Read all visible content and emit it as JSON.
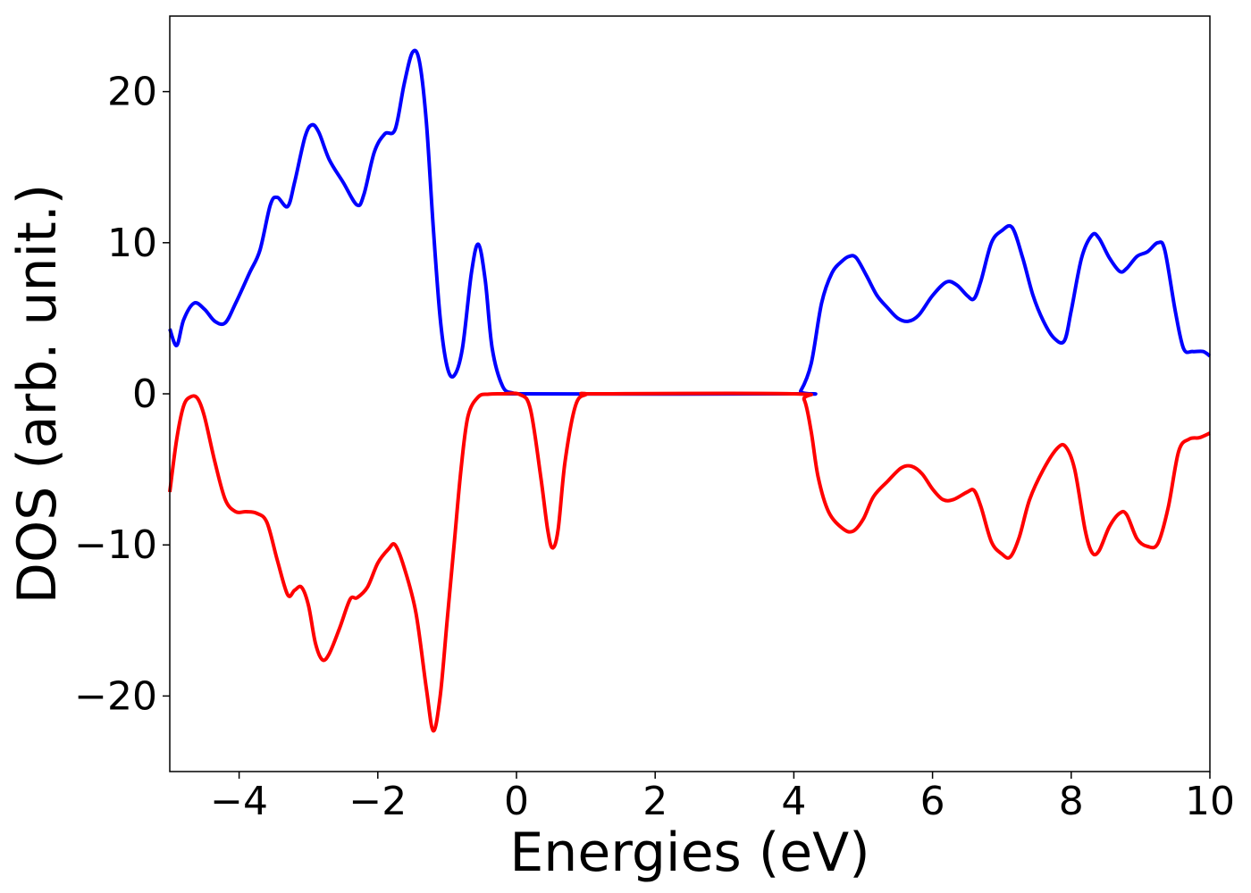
{
  "chart_data": {
    "type": "line",
    "title": "",
    "xlabel": "Energies (eV)",
    "ylabel": "DOS (arb. unit.)",
    "xlim": [
      -5,
      10
    ],
    "ylim": [
      -25,
      25
    ],
    "xticks": [
      -4,
      -2,
      0,
      2,
      4,
      6,
      8,
      10
    ],
    "xtick_labels": [
      "−4",
      "−2",
      "0",
      "2",
      "4",
      "6",
      "8",
      "10"
    ],
    "yticks": [
      -20,
      -10,
      0,
      10,
      20
    ],
    "ytick_labels": [
      "−20",
      "−10",
      "0",
      "10",
      "20"
    ],
    "grid": false,
    "legend": "none",
    "series": [
      {
        "color": "#0000ff",
        "points": [
          [
            -5.0,
            4.3
          ],
          [
            -4.9,
            3.2
          ],
          [
            -4.8,
            4.9
          ],
          [
            -4.65,
            6.0
          ],
          [
            -4.5,
            5.6
          ],
          [
            -4.35,
            4.8
          ],
          [
            -4.2,
            4.7
          ],
          [
            -4.05,
            6.0
          ],
          [
            -3.85,
            8.0
          ],
          [
            -3.7,
            9.5
          ],
          [
            -3.55,
            12.5
          ],
          [
            -3.45,
            13.0
          ],
          [
            -3.3,
            12.4
          ],
          [
            -3.2,
            14.0
          ],
          [
            -3.05,
            17.0
          ],
          [
            -2.95,
            17.8
          ],
          [
            -2.85,
            17.3
          ],
          [
            -2.7,
            15.5
          ],
          [
            -2.5,
            14.0
          ],
          [
            -2.3,
            12.5
          ],
          [
            -2.2,
            13.2
          ],
          [
            -2.05,
            16.0
          ],
          [
            -1.9,
            17.2
          ],
          [
            -1.75,
            17.5
          ],
          [
            -1.62,
            20.5
          ],
          [
            -1.5,
            22.6
          ],
          [
            -1.4,
            22.0
          ],
          [
            -1.3,
            18.0
          ],
          [
            -1.2,
            11.0
          ],
          [
            -1.1,
            5.0
          ],
          [
            -1.0,
            1.8
          ],
          [
            -0.9,
            1.2
          ],
          [
            -0.78,
            3.0
          ],
          [
            -0.65,
            8.0
          ],
          [
            -0.55,
            9.9
          ],
          [
            -0.45,
            7.5
          ],
          [
            -0.35,
            3.0
          ],
          [
            -0.2,
            0.5
          ],
          [
            -0.05,
            0.05
          ],
          [
            0.1,
            0.0
          ],
          [
            4.0,
            0.0
          ],
          [
            4.1,
            0.2
          ],
          [
            4.25,
            2.0
          ],
          [
            4.4,
            6.0
          ],
          [
            4.55,
            8.0
          ],
          [
            4.7,
            8.8
          ],
          [
            4.8,
            9.1
          ],
          [
            4.9,
            9.0
          ],
          [
            5.05,
            7.8
          ],
          [
            5.2,
            6.5
          ],
          [
            5.35,
            5.7
          ],
          [
            5.5,
            5.0
          ],
          [
            5.65,
            4.8
          ],
          [
            5.8,
            5.2
          ],
          [
            6.0,
            6.5
          ],
          [
            6.2,
            7.4
          ],
          [
            6.35,
            7.2
          ],
          [
            6.5,
            6.5
          ],
          [
            6.6,
            6.3
          ],
          [
            6.7,
            7.5
          ],
          [
            6.85,
            10.0
          ],
          [
            7.0,
            10.8
          ],
          [
            7.15,
            11.0
          ],
          [
            7.3,
            9.0
          ],
          [
            7.45,
            6.5
          ],
          [
            7.6,
            4.8
          ],
          [
            7.75,
            3.7
          ],
          [
            7.9,
            3.5
          ],
          [
            8.0,
            5.5
          ],
          [
            8.15,
            9.0
          ],
          [
            8.3,
            10.5
          ],
          [
            8.4,
            10.3
          ],
          [
            8.55,
            9.0
          ],
          [
            8.7,
            8.1
          ],
          [
            8.8,
            8.3
          ],
          [
            8.95,
            9.1
          ],
          [
            9.1,
            9.4
          ],
          [
            9.25,
            10.0
          ],
          [
            9.35,
            9.5
          ],
          [
            9.5,
            5.5
          ],
          [
            9.62,
            3.0
          ],
          [
            9.75,
            2.8
          ],
          [
            9.9,
            2.8
          ],
          [
            10.0,
            2.5
          ]
        ]
      },
      {
        "color": "#ff0000",
        "points": [
          [
            -5.0,
            -6.5
          ],
          [
            -4.9,
            -3.0
          ],
          [
            -4.8,
            -0.8
          ],
          [
            -4.7,
            -0.2
          ],
          [
            -4.6,
            -0.3
          ],
          [
            -4.5,
            -1.5
          ],
          [
            -4.35,
            -4.5
          ],
          [
            -4.2,
            -7.0
          ],
          [
            -4.05,
            -7.8
          ],
          [
            -3.9,
            -7.8
          ],
          [
            -3.75,
            -7.9
          ],
          [
            -3.6,
            -8.5
          ],
          [
            -3.45,
            -11.0
          ],
          [
            -3.3,
            -13.3
          ],
          [
            -3.2,
            -13.0
          ],
          [
            -3.1,
            -12.8
          ],
          [
            -3.0,
            -14.0
          ],
          [
            -2.9,
            -16.5
          ],
          [
            -2.8,
            -17.6
          ],
          [
            -2.7,
            -17.2
          ],
          [
            -2.55,
            -15.5
          ],
          [
            -2.4,
            -13.6
          ],
          [
            -2.3,
            -13.5
          ],
          [
            -2.15,
            -12.8
          ],
          [
            -2.0,
            -11.2
          ],
          [
            -1.85,
            -10.3
          ],
          [
            -1.75,
            -10.0
          ],
          [
            -1.62,
            -11.5
          ],
          [
            -1.45,
            -14.5
          ],
          [
            -1.3,
            -19.5
          ],
          [
            -1.2,
            -22.3
          ],
          [
            -1.1,
            -20.0
          ],
          [
            -1.0,
            -15.0
          ],
          [
            -0.9,
            -10.0
          ],
          [
            -0.8,
            -5.0
          ],
          [
            -0.7,
            -1.5
          ],
          [
            -0.55,
            -0.2
          ],
          [
            -0.4,
            -0.02
          ],
          [
            -0.2,
            0.0
          ],
          [
            0.05,
            -0.05
          ],
          [
            0.2,
            -1.0
          ],
          [
            0.35,
            -5.5
          ],
          [
            0.45,
            -9.0
          ],
          [
            0.52,
            -10.2
          ],
          [
            0.6,
            -9.0
          ],
          [
            0.7,
            -4.5
          ],
          [
            0.85,
            -0.8
          ],
          [
            1.0,
            -0.05
          ],
          [
            1.2,
            0.0
          ],
          [
            4.0,
            0.0
          ],
          [
            4.15,
            -0.4
          ],
          [
            4.25,
            -2.5
          ],
          [
            4.35,
            -5.5
          ],
          [
            4.5,
            -7.8
          ],
          [
            4.7,
            -8.9
          ],
          [
            4.85,
            -9.1
          ],
          [
            5.0,
            -8.3
          ],
          [
            5.15,
            -6.8
          ],
          [
            5.35,
            -5.8
          ],
          [
            5.55,
            -4.9
          ],
          [
            5.7,
            -4.8
          ],
          [
            5.85,
            -5.3
          ],
          [
            6.0,
            -6.3
          ],
          [
            6.15,
            -7.0
          ],
          [
            6.3,
            -7.0
          ],
          [
            6.5,
            -6.5
          ],
          [
            6.6,
            -6.4
          ],
          [
            6.7,
            -7.5
          ],
          [
            6.85,
            -9.8
          ],
          [
            7.0,
            -10.6
          ],
          [
            7.12,
            -10.8
          ],
          [
            7.25,
            -9.5
          ],
          [
            7.4,
            -7.0
          ],
          [
            7.6,
            -5.0
          ],
          [
            7.8,
            -3.6
          ],
          [
            7.92,
            -3.5
          ],
          [
            8.05,
            -5.0
          ],
          [
            8.2,
            -9.0
          ],
          [
            8.3,
            -10.5
          ],
          [
            8.4,
            -10.4
          ],
          [
            8.55,
            -8.8
          ],
          [
            8.7,
            -7.9
          ],
          [
            8.8,
            -8.0
          ],
          [
            8.95,
            -9.6
          ],
          [
            9.1,
            -10.1
          ],
          [
            9.25,
            -9.9
          ],
          [
            9.4,
            -7.5
          ],
          [
            9.55,
            -3.8
          ],
          [
            9.7,
            -3.0
          ],
          [
            9.85,
            -2.9
          ],
          [
            10.0,
            -2.6
          ]
        ]
      }
    ]
  }
}
